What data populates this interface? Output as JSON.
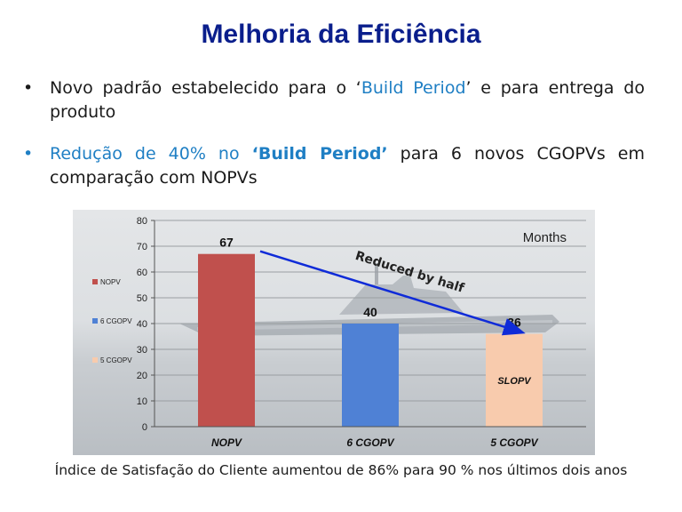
{
  "slide": {
    "title": "Melhoria da Eficiência",
    "bullet1": {
      "marker": "•",
      "part1": "Novo padrão estabelecido para  o ‘",
      "part2": "Build Period",
      "part3": "’ e para entrega do produto"
    },
    "bullet2": {
      "marker": "•",
      "part1": "Redução de 40% no ",
      "part2": "‘Build Period’",
      "part3": " para 6 novos CGOPVs em comparação com NOPVs"
    },
    "footer": "Índice de Satisfação do Cliente aumentou de 86% para 90 % nos últimos  dois anos"
  },
  "colors": {
    "title": "#0a1e8c",
    "nopv": "#c0504d",
    "cgopv6": "#4f81d5",
    "cgopv5": "#f8cbad",
    "arrow": "#0f2bd8",
    "link_blue": "#1f7fc4"
  },
  "chart_data": {
    "type": "bar",
    "categories": [
      "NOPV",
      "6 CGOPV",
      "5 CGOPV"
    ],
    "values": [
      67,
      40,
      36
    ],
    "data_labels": [
      "67",
      "40",
      "36"
    ],
    "ylim": [
      0,
      80
    ],
    "yticks": [
      0,
      10,
      20,
      30,
      40,
      50,
      60,
      70,
      80
    ],
    "unit_label": "Months",
    "legend": [
      {
        "name": "NOPV",
        "color": "#c0504d"
      },
      {
        "name": "6 CGOPV",
        "color": "#4f81d5"
      },
      {
        "name": "5 CGOPV",
        "color": "#f8cbad"
      }
    ],
    "annotation": {
      "text": "Reduced by half",
      "from_category": "NOPV",
      "to_category": "5 CGOPV"
    },
    "bar_inner_label": {
      "category": "5 CGOPV",
      "text": "SLOPV"
    },
    "grid": true,
    "legend_position": "left"
  }
}
